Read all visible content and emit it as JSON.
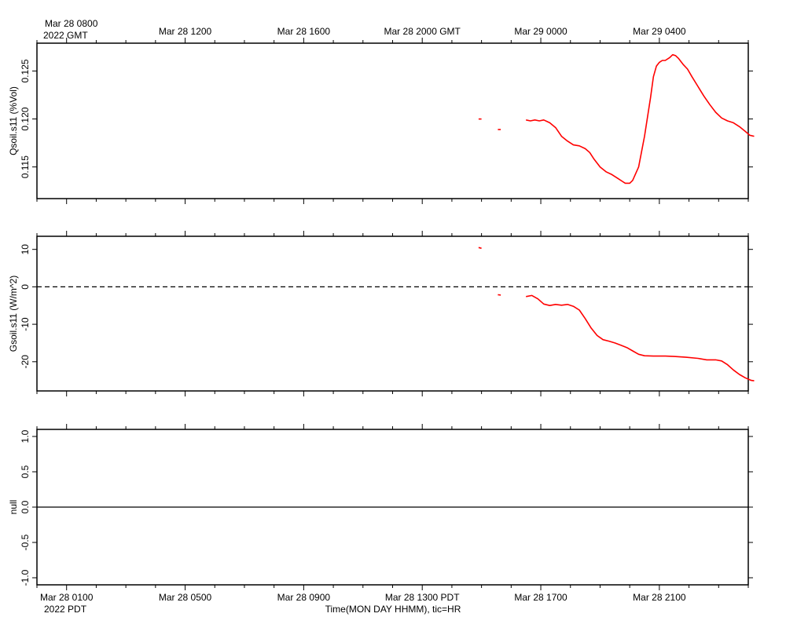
{
  "gmt_axis": {
    "first_label": "Mar 28 0800",
    "year_label": "2022 GMT",
    "labels": [
      "Mar 28 1200",
      "Mar 28 1600",
      "Mar 28 2000 GMT",
      "Mar 29 0000",
      "Mar 29 0400"
    ]
  },
  "pdt_axis": {
    "labels": [
      "Mar 28 0100",
      "Mar 28 0500",
      "Mar 28 0900",
      "Mar 28 1300 PDT",
      "Mar 28 1700",
      "Mar 28 2100"
    ],
    "year_label": "2022 PDT",
    "xlabel": "Time(MON DAY HHMM), tic=HR"
  },
  "chart_data": [
    {
      "type": "line",
      "ylabel": "Qsoil.s11 (%Vol)",
      "x_unit": "hours after Mar 28 0100 PDT",
      "xlim": [
        -1,
        23
      ],
      "ylim": [
        0.1117,
        0.1279
      ],
      "yticks": [
        "0.115",
        "0.120",
        "0.125"
      ],
      "ytick_values": [
        0.115,
        0.12,
        0.125
      ],
      "grid": false,
      "series": [
        {
          "color": "#ff0000",
          "segments": [
            [
              [
                13.9,
                0.12
              ],
              [
                14.0,
                0.12
              ]
            ],
            [
              [
                14.55,
                0.1189
              ],
              [
                14.65,
                0.1189
              ]
            ],
            [
              [
                15.5,
                0.1199
              ],
              [
                15.65,
                0.1198
              ],
              [
                15.8,
                0.1199
              ],
              [
                15.95,
                0.1198
              ],
              [
                16.1,
                0.1199
              ],
              [
                16.3,
                0.1196
              ],
              [
                16.5,
                0.1191
              ],
              [
                16.7,
                0.1182
              ],
              [
                16.9,
                0.1177
              ],
              [
                17.1,
                0.1173
              ],
              [
                17.3,
                0.1172
              ],
              [
                17.5,
                0.1169
              ],
              [
                17.65,
                0.1165
              ],
              [
                17.8,
                0.1158
              ],
              [
                18.0,
                0.115
              ],
              [
                18.2,
                0.1145
              ],
              [
                18.4,
                0.1142
              ],
              [
                18.6,
                0.1138
              ],
              [
                18.75,
                0.1135
              ],
              [
                18.85,
                0.1133
              ],
              [
                19.0,
                0.1133
              ],
              [
                19.1,
                0.1136
              ],
              [
                19.3,
                0.115
              ],
              [
                19.5,
                0.1182
              ],
              [
                19.7,
                0.1222
              ],
              [
                19.8,
                0.1244
              ],
              [
                19.9,
                0.1255
              ],
              [
                20.0,
                0.1259
              ],
              [
                20.1,
                0.1261
              ],
              [
                20.2,
                0.1261
              ],
              [
                20.35,
                0.1264
              ],
              [
                20.45,
                0.1267
              ],
              [
                20.55,
                0.1266
              ],
              [
                20.65,
                0.1263
              ],
              [
                20.8,
                0.1257
              ],
              [
                20.95,
                0.1252
              ],
              [
                21.1,
                0.1244
              ],
              [
                21.3,
                0.1234
              ],
              [
                21.5,
                0.1224
              ],
              [
                21.7,
                0.1215
              ],
              [
                21.9,
                0.1207
              ],
              [
                22.1,
                0.1201
              ],
              [
                22.3,
                0.1198
              ],
              [
                22.5,
                0.1196
              ],
              [
                22.7,
                0.1192
              ],
              [
                22.9,
                0.1187
              ],
              [
                23.05,
                0.1183
              ],
              [
                23.2,
                0.1182
              ]
            ]
          ]
        }
      ]
    },
    {
      "type": "line",
      "ylabel": "Gsoil.s11 (W/m^2)",
      "x_unit": "hours after Mar 28 0100 PDT",
      "xlim": [
        -1,
        23
      ],
      "ylim": [
        -27.8,
        13.5
      ],
      "yticks": [
        "10",
        "0",
        "-10",
        "-20"
      ],
      "ytick_values": [
        10,
        0,
        -10,
        -20
      ],
      "reference_line": {
        "y": 0,
        "style": "dashed"
      },
      "grid": false,
      "series": [
        {
          "color": "#ff0000",
          "segments": [
            [
              [
                13.9,
                10.5
              ],
              [
                14.0,
                10.3
              ]
            ],
            [
              [
                14.55,
                -2.1
              ],
              [
                14.65,
                -2.2
              ]
            ],
            [
              [
                15.5,
                -2.6
              ],
              [
                15.7,
                -2.3
              ],
              [
                15.9,
                -3.2
              ],
              [
                16.1,
                -4.6
              ],
              [
                16.3,
                -5.0
              ],
              [
                16.5,
                -4.7
              ],
              [
                16.7,
                -4.9
              ],
              [
                16.9,
                -4.7
              ],
              [
                17.1,
                -5.2
              ],
              [
                17.3,
                -6.2
              ],
              [
                17.5,
                -8.5
              ],
              [
                17.7,
                -11.0
              ],
              [
                17.9,
                -13.0
              ],
              [
                18.1,
                -14.1
              ],
              [
                18.3,
                -14.5
              ],
              [
                18.5,
                -15.0
              ],
              [
                18.7,
                -15.6
              ],
              [
                18.9,
                -16.2
              ],
              [
                19.1,
                -17.1
              ],
              [
                19.3,
                -18.0
              ],
              [
                19.5,
                -18.4
              ],
              [
                19.8,
                -18.5
              ],
              [
                20.2,
                -18.5
              ],
              [
                20.5,
                -18.6
              ],
              [
                20.9,
                -18.8
              ],
              [
                21.3,
                -19.1
              ],
              [
                21.6,
                -19.5
              ],
              [
                21.9,
                -19.5
              ],
              [
                22.1,
                -19.8
              ],
              [
                22.3,
                -20.8
              ],
              [
                22.5,
                -22.2
              ],
              [
                22.7,
                -23.4
              ],
              [
                22.9,
                -24.3
              ],
              [
                23.1,
                -25.0
              ],
              [
                23.2,
                -25.1
              ]
            ]
          ]
        }
      ]
    },
    {
      "type": "line",
      "ylabel": "null",
      "x_unit": "hours after Mar 28 0100 PDT",
      "xlim": [
        -1,
        23
      ],
      "ylim": [
        -1.1,
        1.1
      ],
      "yticks": [
        "1.0",
        "0.5",
        "0.0",
        "-0.5",
        "-1.0"
      ],
      "ytick_values": [
        1.0,
        0.5,
        0.0,
        -0.5,
        -1.0
      ],
      "reference_line": {
        "y": 0,
        "style": "solid"
      },
      "grid": false,
      "series": []
    }
  ],
  "colors": {
    "series": "#ff0000",
    "axes": "#000000",
    "background": "#ffffff"
  }
}
